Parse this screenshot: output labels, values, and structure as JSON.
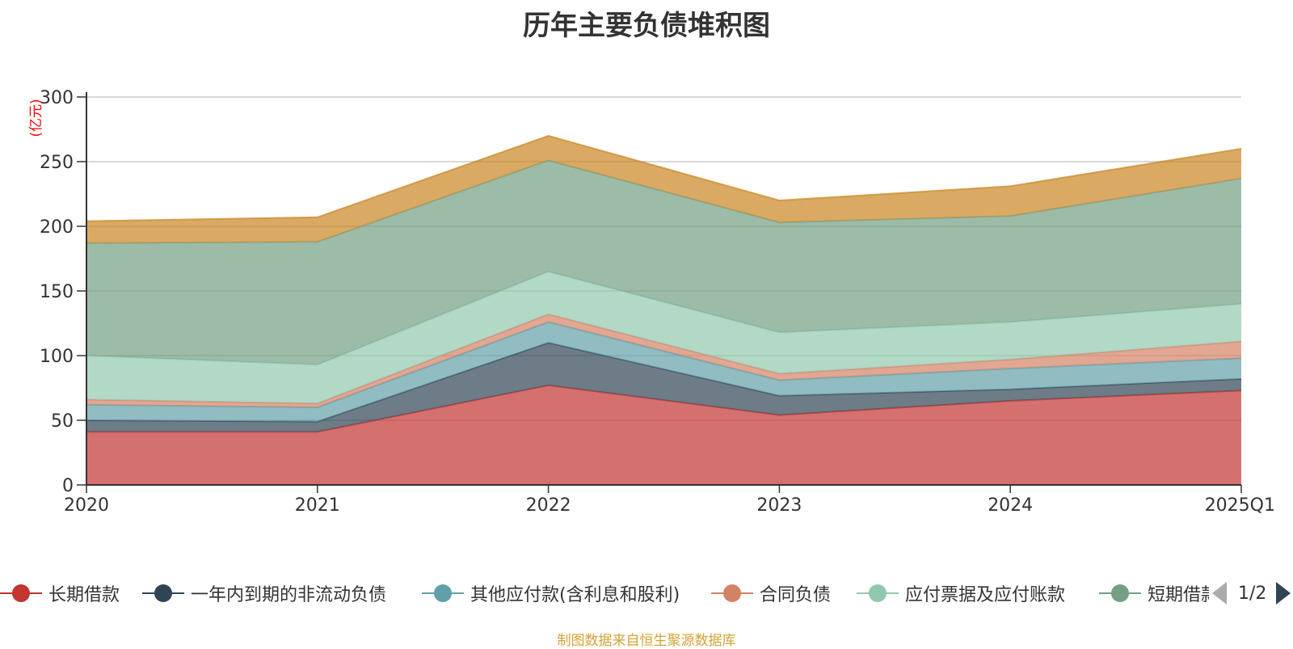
{
  "chart_data": {
    "type": "area",
    "stacked": true,
    "title": "历年主要负债堆积图",
    "ylabel": "(亿元)",
    "xlabel": "",
    "categories": [
      "2020",
      "2021",
      "2022",
      "2023",
      "2024",
      "2025Q1"
    ],
    "ylim": [
      0,
      300
    ],
    "yticks": [
      0,
      50,
      100,
      150,
      200,
      250,
      300
    ],
    "grid": true,
    "legend_position": "bottom",
    "series": [
      {
        "name": "长期借款",
        "color": "#c23531",
        "values": [
          41,
          41,
          77,
          54,
          65,
          73
        ]
      },
      {
        "name": "一年内到期的非流动负债",
        "color": "#2f4554",
        "values": [
          9,
          8,
          33,
          15,
          9,
          9
        ]
      },
      {
        "name": "其他应付款(含利息和股利)",
        "color": "#61a0a8",
        "values": [
          12,
          11,
          16,
          12,
          16,
          16
        ]
      },
      {
        "name": "合同负债",
        "color": "#d48265",
        "values": [
          4,
          3,
          6,
          5,
          7,
          13
        ]
      },
      {
        "name": "应付票据及应付账款",
        "color": "#91c7ae",
        "values": [
          34,
          30,
          33,
          32,
          29,
          29
        ]
      },
      {
        "name": "短期借款",
        "color": "#749f83",
        "values": [
          87,
          95,
          86,
          85,
          82,
          97
        ]
      },
      {
        "name": "",
        "color": "#ca8622",
        "values": [
          17,
          19,
          19,
          17,
          23,
          23
        ]
      }
    ]
  },
  "legend": {
    "items": [
      "长期借款",
      "一年内到期的非流动负债",
      "其他应付款(含利息和股利)",
      "合同负债",
      "应付票据及应付账款",
      "短期借款"
    ],
    "page_text": "1/2"
  },
  "footnote": "制图数据来自恒生聚源数据库"
}
